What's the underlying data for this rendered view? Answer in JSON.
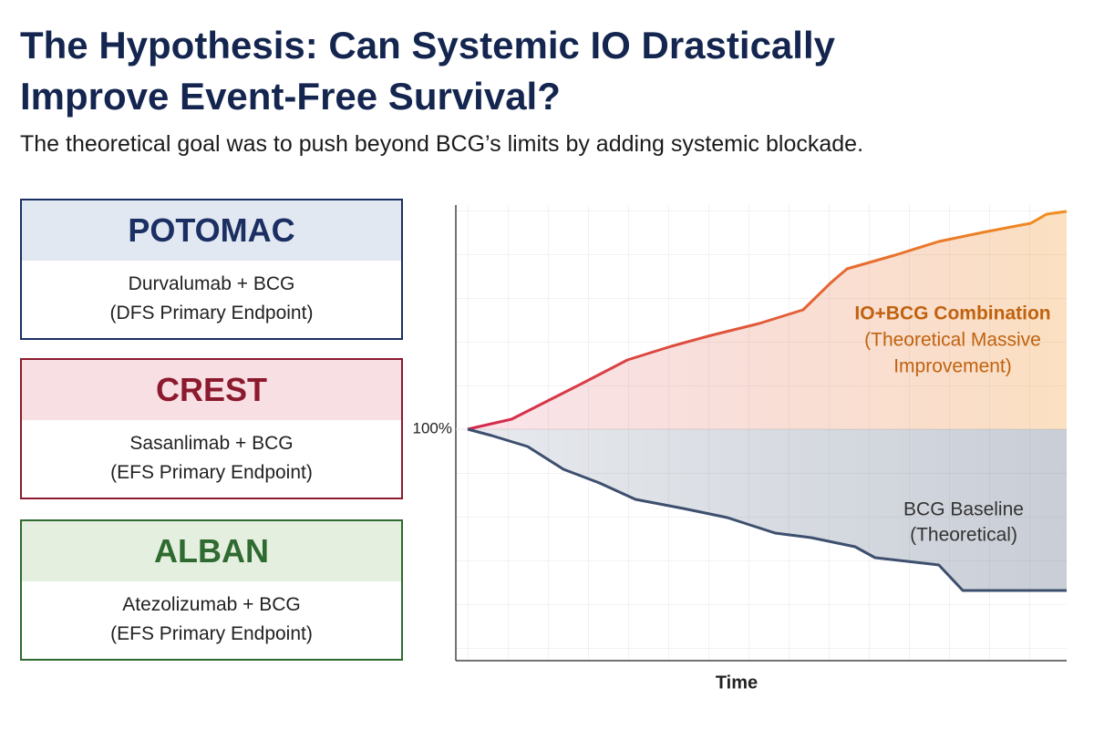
{
  "header": {
    "title_lines": [
      "The Hypothesis: Can Systemic IO Drastically",
      "Improve Event-Free Survival?"
    ],
    "subtitle": "The theoretical goal was to push beyond BCG’s limits by adding systemic blockade."
  },
  "trials": [
    {
      "name": "POTOMAC",
      "lines": [
        "Durvalumab + BCG",
        "(DFS Primary Endpoint)"
      ],
      "color": "#1c2f63",
      "header_bg": "#e1e8f2"
    },
    {
      "name": "CREST",
      "lines": [
        "Sasanlimab + BCG",
        "(EFS Primary Endpoint)"
      ],
      "color": "#8c1a2e",
      "header_bg": "#f8dfe4"
    },
    {
      "name": "ALBAN",
      "lines": [
        "Atezolizumab + BCG",
        "(EFS Primary Endpoint)"
      ],
      "color": "#2f6a30",
      "header_bg": "#e4efe0"
    }
  ],
  "chart_data": {
    "type": "line",
    "xlabel": "Time",
    "xlim": [
      0,
      15
    ],
    "ylim": [
      50,
      150
    ],
    "yticks": [
      {
        "value": 100,
        "label": "100%"
      }
    ],
    "grid": true,
    "series": [
      {
        "label_lines": [
          "IO+BCG Combination",
          "(Theoretical Massive",
          "Improvement)"
        ],
        "colors": [
          "#d3284f",
          "#f09020"
        ],
        "label_color": "#c0620f",
        "x": [
          0,
          1.1,
          2.0,
          2.9,
          4.0,
          5.1,
          6.1,
          7.3,
          8.4,
          9.1,
          9.5,
          10.7,
          11.8,
          12.9,
          14.1,
          14.5,
          15
        ],
        "values": [
          100,
          102.2,
          106.2,
          110.2,
          115.2,
          118.2,
          120.6,
          123.2,
          126.2,
          132.2,
          135.2,
          138.2,
          141.2,
          143.2,
          145.2,
          147.2,
          147.8
        ]
      },
      {
        "label_lines": [
          "BCG Baseline",
          "(Theoretical)"
        ],
        "colors": [
          "#3d4f6e",
          "#3d4f6e"
        ],
        "label_color": "#333333",
        "x": [
          0,
          0.6,
          1.5,
          2.4,
          3.3,
          4.2,
          5.4,
          6.5,
          7.7,
          8.6,
          9.7,
          10.2,
          11.8,
          12.4,
          15
        ],
        "values": [
          100,
          98.6,
          96.2,
          91.2,
          88.2,
          84.6,
          82.6,
          80.6,
          77.2,
          76.2,
          74.2,
          71.8,
          70.2,
          64.6,
          64.6
        ]
      }
    ]
  }
}
